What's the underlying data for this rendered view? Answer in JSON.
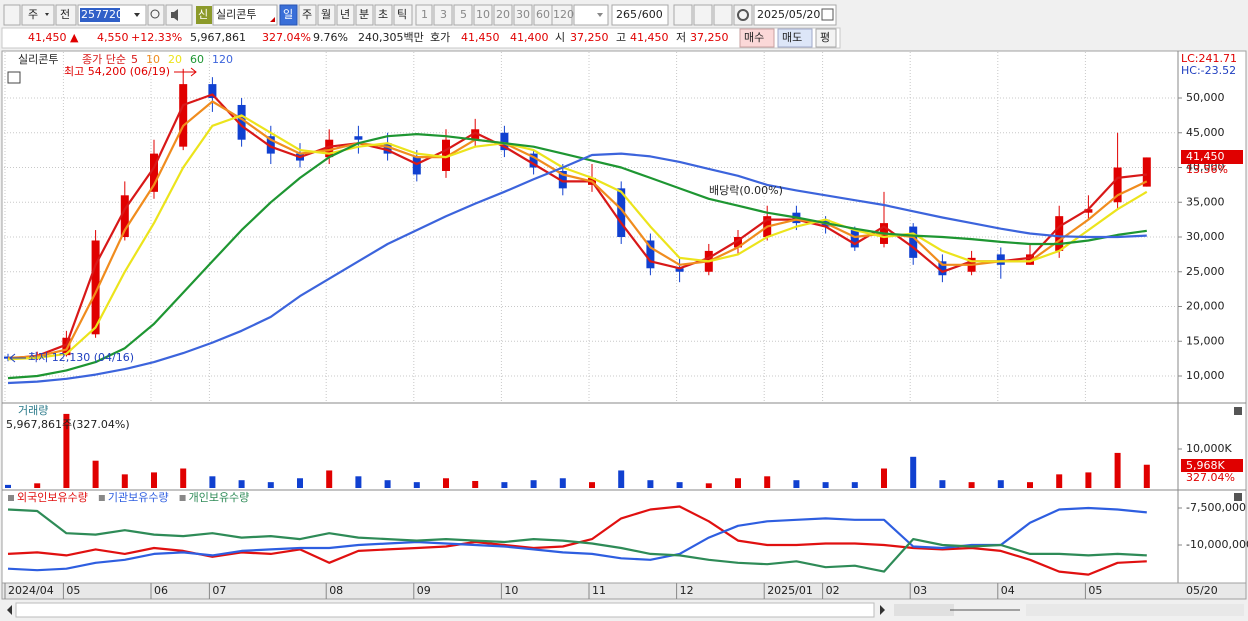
{
  "toolbar": {
    "market": "주",
    "market2": "전",
    "code": "257720",
    "name_badge": "신",
    "name": "실리콘투",
    "periods": [
      "일",
      "주",
      "월",
      "년",
      "분",
      "초",
      "틱"
    ],
    "intervals": [
      "1",
      "3",
      "5",
      "10",
      "20",
      "30",
      "60",
      "120"
    ],
    "count": "265",
    "count_max": "/600",
    "date": "2025/05/20"
  },
  "quote": {
    "price": "41,450 ▲",
    "change": "4,550",
    "change_pct": "+12.33%",
    "volume": "5,967,861",
    "volume_pct": "327.04%",
    "turnover": "9.76%",
    "amount": "240,305백만",
    "ask_label": "호가",
    "ask": "41,450",
    "bid": "41,400",
    "open_label": "시",
    "open": "37,250",
    "high_label": "고",
    "high": "41,450",
    "low_label": "저",
    "low": "37,250",
    "buy": "매수",
    "sell": "매도",
    "avg": "평"
  },
  "chart_data": [
    {
      "type": "candlestick",
      "title": "실리콘투",
      "legend_title": "종가 단순",
      "categories": [
        "2024/04",
        null,
        "05",
        null,
        null,
        "06",
        null,
        "07",
        null,
        null,
        null,
        "08",
        null,
        null,
        "09",
        null,
        null,
        "10",
        null,
        null,
        "11",
        null,
        null,
        "12",
        null,
        null,
        "2025/01",
        null,
        "02",
        null,
        null,
        "03",
        null,
        null,
        "04",
        null,
        null,
        "05",
        null,
        null
      ],
      "open": [
        12800,
        12500,
        13000,
        16000,
        30000,
        36500,
        43000,
        52000,
        49000,
        44500,
        42000,
        41500,
        44500,
        43500,
        41500,
        39500,
        44000,
        45000,
        42000,
        39500,
        37500,
        37000,
        29500,
        25500,
        25000,
        28500,
        30000,
        33500,
        32500,
        31000,
        29000,
        31500,
        26500,
        25000,
        27500,
        26000,
        28000,
        33500,
        35000,
        37250
      ],
      "high": [
        13200,
        13500,
        16500,
        31000,
        38000,
        44000,
        54200,
        53000,
        50000,
        46000,
        43500,
        45500,
        46000,
        45000,
        42500,
        45500,
        47000,
        46000,
        42500,
        40500,
        40500,
        38000,
        30500,
        27000,
        29000,
        31000,
        34500,
        34500,
        33000,
        31500,
        36500,
        32000,
        27500,
        28000,
        28500,
        29000,
        34500,
        36000,
        45000,
        41450
      ],
      "low": [
        12130,
        12300,
        12800,
        15500,
        29500,
        35500,
        42500,
        48000,
        43000,
        40500,
        40000,
        40500,
        42000,
        41000,
        38000,
        38500,
        43000,
        41500,
        39000,
        36000,
        36500,
        29000,
        24500,
        23500,
        24500,
        27500,
        29500,
        31000,
        30500,
        28000,
        28500,
        26000,
        23500,
        24500,
        24000,
        26000,
        27000,
        32500,
        34000,
        37250
      ],
      "close": [
        12500,
        13000,
        15500,
        29500,
        36000,
        42000,
        52000,
        50000,
        44000,
        42000,
        41000,
        44000,
        44000,
        42000,
        39000,
        44000,
        45500,
        42500,
        40000,
        37000,
        38500,
        30000,
        25500,
        25000,
        28000,
        30000,
        33000,
        32000,
        31500,
        28500,
        32000,
        27000,
        24500,
        27000,
        26000,
        27500,
        33000,
        34000,
        40000,
        41450
      ],
      "up_color": "#e00000",
      "down_color": "#1040d0",
      "series": [
        {
          "name": "5",
          "color": "#d81818",
          "values": [
            12500,
            12900,
            14500,
            26000,
            34000,
            40000,
            49000,
            50500,
            46000,
            43000,
            41500,
            43000,
            43500,
            42500,
            40500,
            42500,
            45000,
            43000,
            40500,
            38000,
            38000,
            32000,
            26500,
            25500,
            27000,
            29500,
            32500,
            32500,
            31500,
            29000,
            31500,
            28500,
            25000,
            26500,
            26500,
            27000,
            31500,
            34000,
            38500,
            39000
          ]
        },
        {
          "name": "10",
          "color": "#f08c1e",
          "values": [
            12600,
            12800,
            13800,
            22000,
            31000,
            37500,
            46000,
            49500,
            47000,
            44000,
            42000,
            42500,
            43500,
            43000,
            41500,
            41500,
            44000,
            43500,
            41500,
            39000,
            38000,
            34000,
            28500,
            26000,
            26500,
            28500,
            31500,
            32500,
            32000,
            30000,
            30500,
            30000,
            26000,
            26000,
            26500,
            26500,
            29500,
            32500,
            36000,
            38000
          ]
        },
        {
          "name": "20",
          "color": "#ece41c",
          "values": [
            12400,
            12600,
            13200,
            17000,
            25000,
            32000,
            40000,
            46000,
            47500,
            45000,
            42500,
            42000,
            43000,
            43500,
            42000,
            41500,
            43000,
            43500,
            42500,
            40000,
            38500,
            36500,
            31500,
            27000,
            26500,
            27500,
            30000,
            31500,
            32500,
            31000,
            30000,
            30500,
            28000,
            26500,
            26500,
            26500,
            28000,
            31000,
            34000,
            36500
          ]
        },
        {
          "name": "60",
          "color": "#1e9632",
          "values": [
            9700,
            10000,
            10800,
            12000,
            14000,
            17500,
            22000,
            26500,
            31000,
            35000,
            38500,
            41500,
            43500,
            44500,
            44800,
            44500,
            44000,
            43500,
            43000,
            42000,
            41000,
            40000,
            38500,
            37000,
            35500,
            34500,
            33500,
            32800,
            32000,
            31200,
            30500,
            30200,
            30000,
            29700,
            29300,
            29000,
            29000,
            29500,
            30300,
            30900
          ]
        },
        {
          "name": "120",
          "color": "#3c64dc",
          "values": [
            9000,
            9200,
            9600,
            10200,
            11000,
            12000,
            13300,
            14800,
            16500,
            18500,
            21500,
            24000,
            26500,
            29000,
            31000,
            33000,
            34800,
            36500,
            38300,
            40000,
            41800,
            42000,
            41600,
            40800,
            39800,
            38800,
            37500,
            36700,
            36000,
            35300,
            34600,
            33700,
            32800,
            32000,
            31200,
            30500,
            30100,
            30000,
            30000,
            30200
          ]
        }
      ],
      "ylim": [
        6260,
        56620
      ],
      "yticks": [
        {
          "value": 10000,
          "label": "10,000"
        },
        {
          "value": 15000,
          "label": "15,000"
        },
        {
          "value": 20000,
          "label": "20,000"
        },
        {
          "value": 25000,
          "label": "25,000"
        },
        {
          "value": 30000,
          "label": "30,000"
        },
        {
          "value": 35000,
          "label": "35,000"
        },
        {
          "value": 40000,
          "label": "40,000"
        },
        {
          "value": 45000,
          "label": "45,000"
        },
        {
          "value": 50000,
          "label": "50,000"
        }
      ],
      "grid": true,
      "annotations": [
        "최고 54,200 (06/19)",
        "최저 12,130 (04/16)",
        "배당락(0.00%)"
      ],
      "lc_label": "LC:241.71",
      "hc_label": "HC:-23.52",
      "last_price_label": "41,450",
      "last_change_label": "13.56%",
      "x_end_label": "05/20"
    },
    {
      "type": "bar",
      "title": "거래량",
      "subtitle": "5,967,861주(327.04%)",
      "values": [
        800000,
        1200000,
        19000000,
        7000000,
        3500000,
        4000000,
        5000000,
        3000000,
        2000000,
        1500000,
        2500000,
        4500000,
        3000000,
        2000000,
        1500000,
        2500000,
        1800000,
        1500000,
        2000000,
        2500000,
        1500000,
        4500000,
        2000000,
        1500000,
        1200000,
        2500000,
        3000000,
        2000000,
        1500000,
        1500000,
        5000000,
        8000000,
        2000000,
        1500000,
        2000000,
        1500000,
        3500000,
        4000000,
        9000000,
        5967861
      ],
      "ylim": [
        0,
        21540000
      ],
      "yticks": [
        {
          "value": 10000000,
          "label": "10,000K"
        }
      ],
      "last_label": "5,968K",
      "last_ratio_label": "327.04%"
    },
    {
      "type": "line",
      "series": [
        {
          "name": "외국인보유수량",
          "color": "#e01010",
          "values": [
            -10600000,
            -10500000,
            -10700000,
            -10300000,
            -10600000,
            -10200000,
            -10400000,
            -10800000,
            -10500000,
            -10600000,
            -10300000,
            -11200000,
            -10400000,
            -10300000,
            -10200000,
            -10100000,
            -9800000,
            -10000000,
            -10200000,
            -10100000,
            -9600000,
            -8200000,
            -7600000,
            -7400000,
            -8400000,
            -9700000,
            -10000000,
            -10000000,
            -9900000,
            -9900000,
            -10000000,
            -10200000,
            -10300000,
            -10200000,
            -10400000,
            -11000000,
            -11800000,
            -12000000,
            -11200000,
            -11100000
          ]
        },
        {
          "name": "기관보유수량",
          "color": "#2e5ee0",
          "values": [
            -11600000,
            -11700000,
            -11600000,
            -11200000,
            -11000000,
            -10600000,
            -10500000,
            -10700000,
            -10400000,
            -10300000,
            -10200000,
            -10200000,
            -10000000,
            -9900000,
            -9800000,
            -9900000,
            -10000000,
            -10100000,
            -10300000,
            -10500000,
            -10600000,
            -10900000,
            -11000000,
            -10600000,
            -9500000,
            -8700000,
            -8400000,
            -8300000,
            -8200000,
            -8300000,
            -8300000,
            -10100000,
            -10200000,
            -10000000,
            -10000000,
            -8500000,
            -7600000,
            -7500000,
            -7600000,
            -7800000
          ]
        },
        {
          "name": "개인보유수량",
          "color": "#2e8b57",
          "values": [
            -7600000,
            -7700000,
            -9200000,
            -9300000,
            -9000000,
            -9300000,
            -9400000,
            -9200000,
            -9500000,
            -9400000,
            -9600000,
            -9200000,
            -9500000,
            -9600000,
            -9700000,
            -9600000,
            -9700000,
            -9800000,
            -9600000,
            -9700000,
            -9900000,
            -10200000,
            -10600000,
            -10700000,
            -11000000,
            -11200000,
            -11300000,
            -11100000,
            -11500000,
            -11400000,
            -11800000,
            -9600000,
            -10000000,
            -10100000,
            -10000000,
            -10600000,
            -10600000,
            -10700000,
            -10600000,
            -10700000
          ]
        }
      ],
      "ylim": [
        -12568000,
        -6419000
      ],
      "yticks": [
        {
          "value": -7500000,
          "label": "-7,500,000"
        },
        {
          "value": -10000000,
          "label": "-10,000,000"
        }
      ]
    }
  ]
}
